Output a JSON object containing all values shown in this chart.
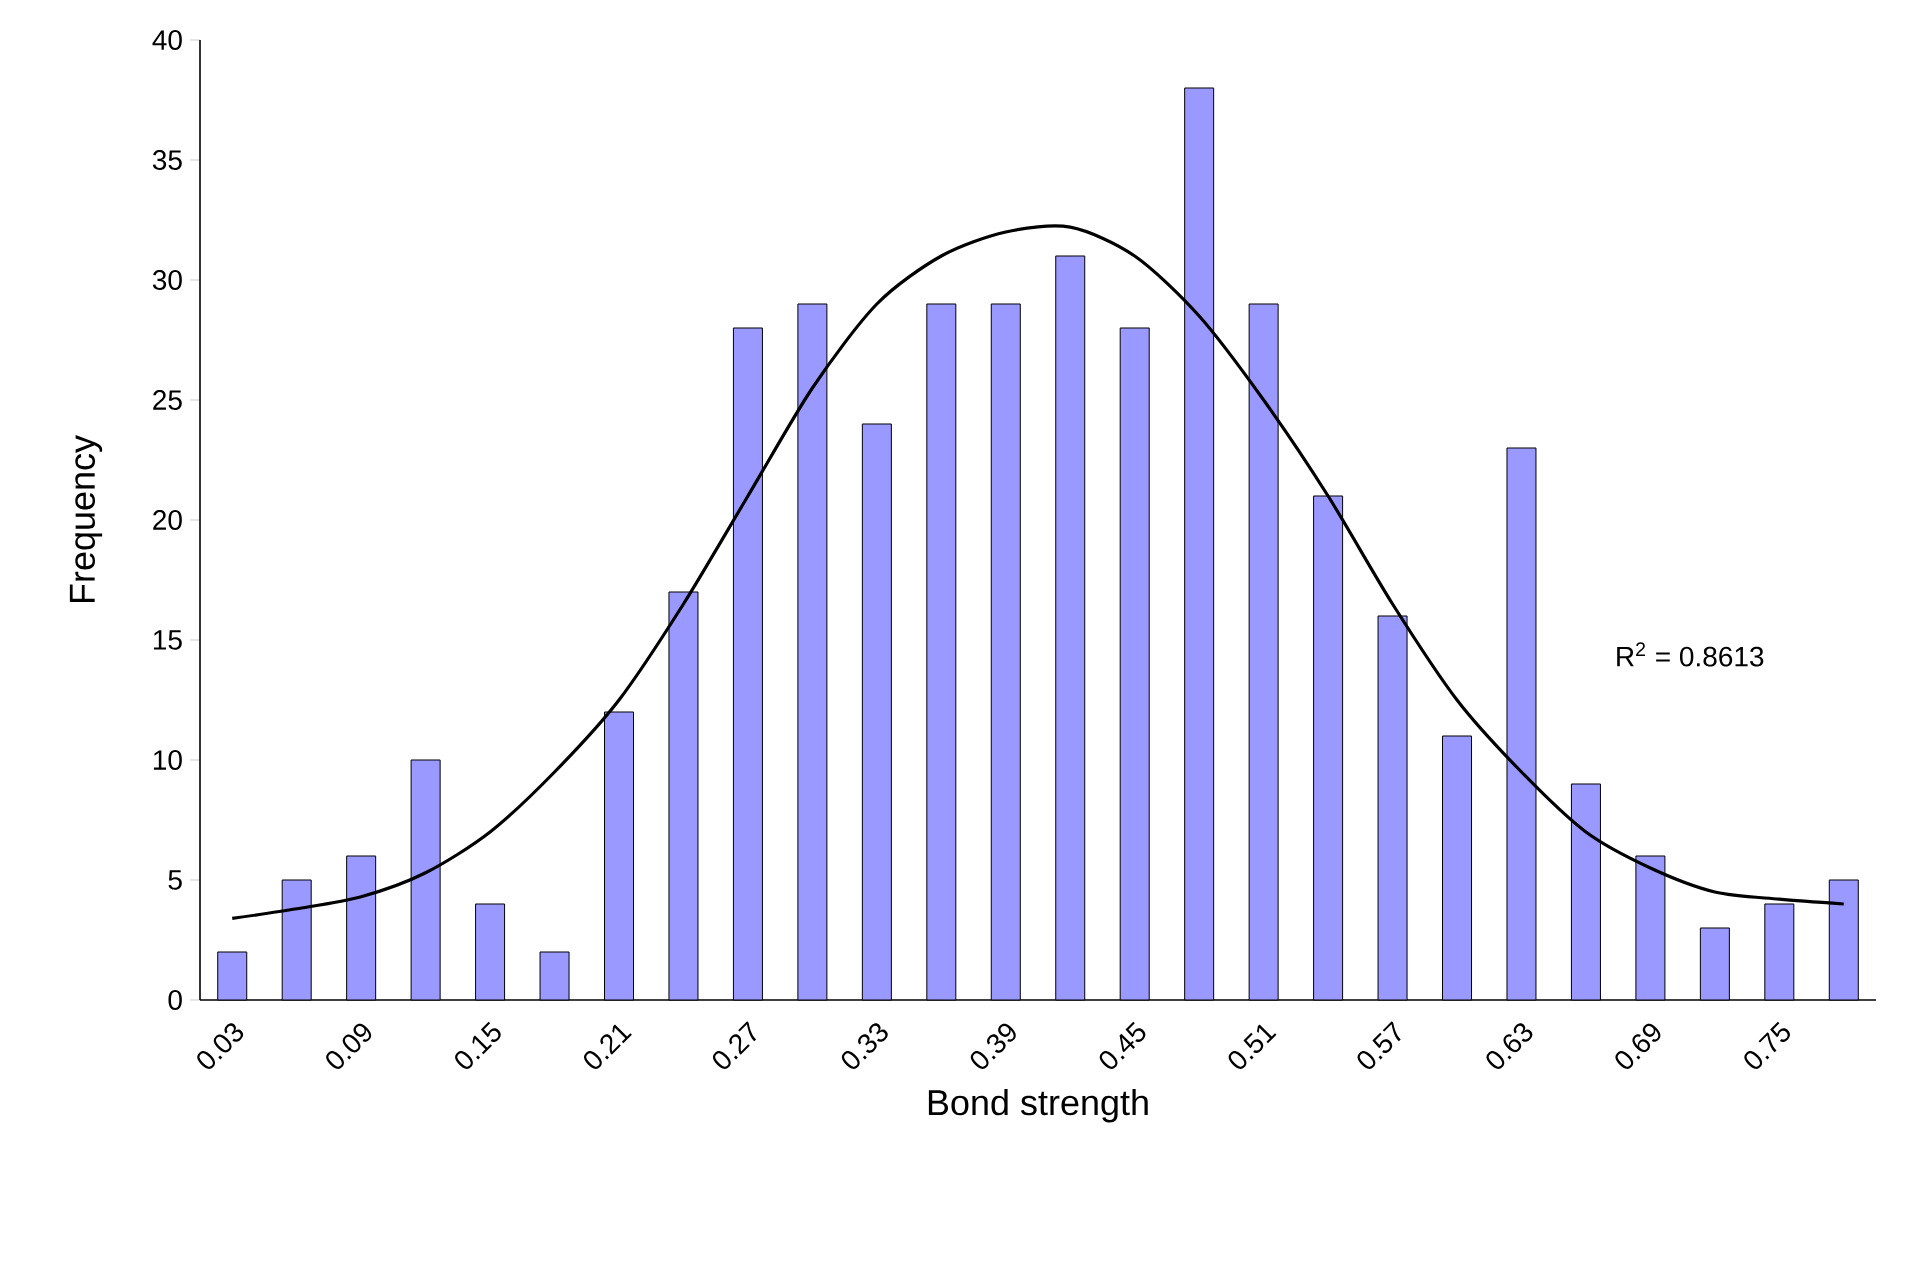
{
  "chart_data": {
    "type": "bar",
    "xlabel": "Bond strength",
    "ylabel": "Frequency",
    "categories": [
      "0.03",
      null,
      "0.09",
      null,
      "0.15",
      null,
      "0.21",
      null,
      "0.27",
      null,
      "0.33",
      null,
      "0.39",
      null,
      "0.45",
      null,
      "0.51",
      null,
      "0.57",
      null,
      "0.63",
      null,
      "0.69",
      null,
      "0.75",
      null
    ],
    "series": [
      {
        "color": "#9999ff",
        "values": [
          2,
          5,
          6,
          10,
          4,
          2,
          12,
          17,
          28,
          29,
          24,
          29,
          29,
          31,
          28,
          38,
          29,
          21,
          16,
          11,
          23,
          9,
          6,
          3,
          4,
          5
        ]
      },
      {
        "type": "line",
        "color": "#000000",
        "values": [
          3.4,
          3.8,
          4.3,
          5.3,
          7,
          9.5,
          12.5,
          16.5,
          21,
          25.5,
          29,
          31,
          32,
          32.2,
          31,
          28.5,
          25,
          21,
          16.5,
          12.5,
          9.5,
          7,
          5.5,
          4.5,
          4.2,
          4
        ]
      }
    ],
    "ylim": [
      0,
      40
    ],
    "yticks": [
      0,
      5,
      10,
      15,
      20,
      25,
      30,
      35,
      40
    ],
    "annotations": [
      "R$^{2}$ = 0.8613"
    ]
  }
}
